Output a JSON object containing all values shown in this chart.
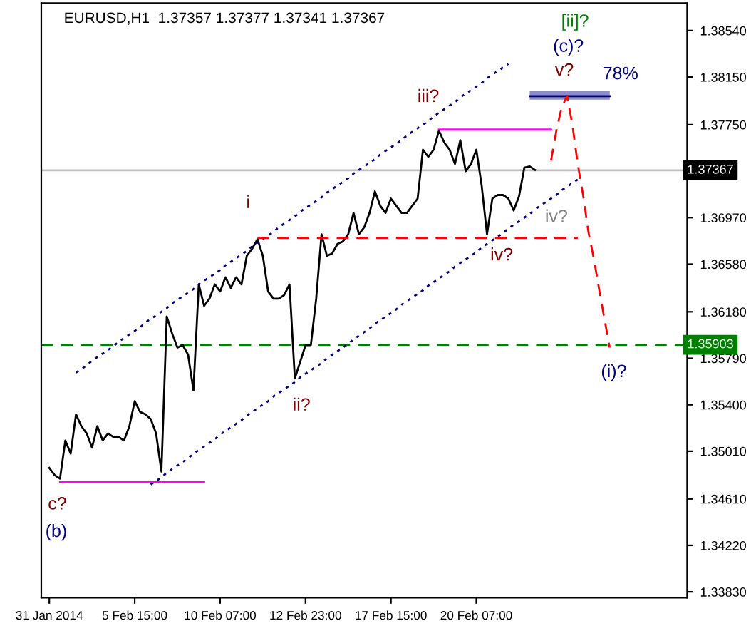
{
  "chart_data": {
    "type": "line",
    "title": "EURUSD,H1  1.37357 1.37377 1.37341 1.37367",
    "categories": [
      null,
      "31 Jan 2014",
      null,
      null,
      null,
      null,
      null,
      null,
      null,
      null,
      null,
      null,
      null,
      null,
      null,
      null,
      null,
      "5 Feb 15:00",
      null,
      null,
      null,
      null,
      null,
      null,
      null,
      null,
      null,
      null,
      null,
      null,
      null,
      null,
      null,
      "10 Feb 07:00",
      null,
      null,
      null,
      null,
      null,
      null,
      null,
      null,
      null,
      null,
      null,
      null,
      null,
      null,
      null,
      "12 Feb 23:00",
      null,
      null,
      null,
      null,
      null,
      null,
      null,
      null,
      null,
      null,
      null,
      null,
      null,
      null,
      null,
      "17 Feb 15:00",
      null,
      null,
      null,
      null,
      null,
      null,
      null,
      null,
      null,
      null,
      null,
      null,
      null,
      null,
      null,
      "20 Feb 07:00",
      null,
      null,
      null,
      null,
      null,
      null,
      null,
      null,
      null,
      null,
      null,
      null,
      null,
      null,
      null,
      null,
      null,
      null,
      null,
      null,
      null,
      null,
      null,
      null,
      null,
      null,
      null,
      null,
      null,
      null,
      null,
      null,
      null,
      null,
      null,
      null,
      null,
      null,
      null
    ],
    "ylim": [
      1.3378,
      1.3877
    ],
    "yticks": [
      {
        "value": 1.3383,
        "label": "1.33830"
      },
      {
        "value": 1.3422,
        "label": "1.34220"
      },
      {
        "value": 1.3461,
        "label": "1.34610"
      },
      {
        "value": 1.3501,
        "label": "1.35010"
      },
      {
        "value": 1.354,
        "label": "1.35400"
      },
      {
        "value": 1.3579,
        "label": "1.35790"
      },
      {
        "value": 1.3618,
        "label": "1.36180"
      },
      {
        "value": 1.3658,
        "label": "1.36580"
      },
      {
        "value": 1.3697,
        "label": "1.36970"
      },
      {
        "value": 1.3775,
        "label": "1.37750"
      },
      {
        "value": 1.3815,
        "label": "1.38150"
      },
      {
        "value": 1.3854,
        "label": "1.38540"
      }
    ],
    "grid": false,
    "legend": false,
    "marker": "none",
    "series": [
      {
        "color": "#000000",
        "line_style": "solid",
        "values": [
          null,
          1.3487,
          1.3481,
          1.3478,
          1.351,
          1.3499,
          1.3532,
          1.3522,
          1.3516,
          1.3504,
          1.3522,
          1.351,
          1.3516,
          1.3513,
          1.3513,
          1.351,
          1.3522,
          1.3543,
          1.3534,
          1.3532,
          1.3528,
          1.3516,
          1.3484,
          1.3614,
          1.36,
          1.3588,
          1.359,
          1.3582,
          1.3552,
          1.3641,
          1.3623,
          1.3629,
          1.3641,
          1.3635,
          1.3647,
          1.3638,
          1.3647,
          1.3641,
          1.3665,
          1.3671,
          1.3679,
          1.3665,
          1.3635,
          1.3629,
          1.3629,
          1.3632,
          1.3641,
          1.3562,
          1.3576,
          1.359,
          1.359,
          1.3629,
          1.3683,
          1.3665,
          1.3667,
          1.3675,
          1.3677,
          1.3683,
          1.3701,
          1.3683,
          1.3689,
          1.3701,
          1.3719,
          1.3707,
          1.3701,
          1.3713,
          1.3707,
          1.3701,
          1.3701,
          1.3707,
          1.3713,
          1.3754,
          1.3748,
          1.3754,
          1.377,
          1.376,
          1.3754,
          1.3742,
          1.3762,
          1.3736,
          1.3742,
          1.3754,
          1.3724,
          1.3683,
          1.3713,
          1.3716,
          1.3716,
          1.3713,
          1.3703,
          1.3715,
          1.3739,
          1.374,
          1.3737,
          null,
          null,
          null,
          null,
          null,
          null,
          null,
          null,
          null,
          null,
          null,
          null,
          null,
          null,
          null,
          null,
          null,
          null,
          null,
          null,
          null,
          null,
          null,
          null,
          null,
          null,
          null,
          null
        ]
      },
      {
        "color": "#000080",
        "line_style": "dotted",
        "values": [
          null,
          null,
          null,
          null,
          null,
          null,
          1.3567,
          1.357,
          1.3573,
          1.3577,
          1.358,
          1.3583,
          1.3586,
          1.3589,
          1.3593,
          1.3596,
          1.3599,
          1.3602,
          1.3605,
          1.3609,
          1.3612,
          1.3615,
          1.3618,
          1.3621,
          1.3625,
          1.3628,
          1.3631,
          1.3634,
          1.3637,
          1.3641,
          1.3644,
          1.3647,
          1.365,
          1.3653,
          1.3657,
          1.366,
          1.3663,
          1.3666,
          1.3669,
          1.3673,
          1.3676,
          1.3679,
          1.3682,
          1.3685,
          1.3689,
          1.3692,
          1.3695,
          1.3698,
          1.3702,
          1.3705,
          1.3708,
          1.3711,
          1.3714,
          1.3718,
          1.3721,
          1.3724,
          1.3727,
          1.373,
          1.3734,
          1.3737,
          1.374,
          1.3743,
          1.3746,
          1.375,
          1.3753,
          1.3756,
          1.3759,
          1.3762,
          1.3766,
          1.3769,
          1.3772,
          1.3775,
          1.3778,
          1.3782,
          1.3785,
          1.3788,
          1.3791,
          1.3794,
          1.3798,
          1.3801,
          1.3804,
          1.3807,
          1.381,
          1.3814,
          1.3817,
          1.382,
          1.3823,
          1.3826,
          null,
          null,
          null,
          null,
          null,
          null,
          null,
          null,
          null,
          null,
          null,
          null,
          null,
          null,
          null,
          null,
          null,
          null,
          null,
          null,
          null,
          null,
          null,
          null,
          null,
          null,
          null,
          null,
          null,
          null,
          null,
          null,
          null
        ]
      },
      {
        "color": "#000080",
        "line_style": "dotted",
        "values": [
          null,
          null,
          null,
          null,
          null,
          null,
          null,
          null,
          null,
          null,
          null,
          null,
          null,
          null,
          null,
          null,
          null,
          null,
          null,
          null,
          1.3473,
          1.3476,
          1.3479,
          1.3483,
          1.3486,
          1.3489,
          1.3492,
          1.3495,
          1.3499,
          1.3502,
          1.3505,
          1.3508,
          1.3511,
          1.3515,
          1.3518,
          1.3521,
          1.3524,
          1.3527,
          1.3531,
          1.3534,
          1.3537,
          1.354,
          1.3543,
          1.3547,
          1.355,
          1.3553,
          1.3556,
          1.3559,
          1.3563,
          1.3566,
          1.3569,
          1.3572,
          1.3575,
          1.3579,
          1.3582,
          1.3585,
          1.3588,
          1.3591,
          1.3595,
          1.3598,
          1.3601,
          1.3604,
          1.3608,
          1.3611,
          1.3614,
          1.3617,
          1.362,
          1.3624,
          1.3627,
          1.363,
          1.3633,
          1.3636,
          1.364,
          1.3643,
          1.3646,
          1.3649,
          1.3652,
          1.3656,
          1.3659,
          1.3662,
          1.3665,
          1.3668,
          1.3672,
          1.3675,
          1.3678,
          1.3681,
          1.3684,
          1.3688,
          1.3691,
          1.3694,
          1.3697,
          1.37,
          1.3704,
          1.3707,
          1.371,
          1.3713,
          1.3716,
          1.372,
          1.3723,
          1.3726,
          1.3729,
          null,
          null,
          null,
          null,
          null,
          null,
          null,
          null,
          null,
          null,
          null,
          null,
          null,
          null,
          null,
          null,
          null,
          null,
          null,
          null
        ]
      },
      {
        "color": "#ff0000",
        "line_style": "dashed",
        "values": [
          null,
          null,
          null,
          null,
          null,
          null,
          null,
          null,
          null,
          null,
          null,
          null,
          null,
          null,
          null,
          null,
          null,
          null,
          null,
          null,
          null,
          null,
          null,
          null,
          null,
          null,
          null,
          null,
          null,
          null,
          null,
          null,
          null,
          null,
          null,
          null,
          null,
          null,
          null,
          null,
          1.368,
          1.368,
          1.368,
          1.368,
          1.368,
          1.368,
          1.368,
          1.368,
          1.368,
          1.368,
          1.368,
          1.368,
          1.368,
          1.368,
          1.368,
          1.368,
          1.368,
          1.368,
          1.368,
          1.368,
          1.368,
          1.368,
          1.368,
          1.368,
          1.368,
          1.368,
          1.368,
          1.368,
          1.368,
          1.368,
          1.368,
          1.368,
          1.368,
          1.368,
          1.368,
          1.368,
          1.368,
          1.368,
          1.368,
          1.368,
          1.368,
          1.368,
          1.368,
          1.368,
          1.368,
          1.368,
          1.368,
          1.368,
          1.368,
          1.368,
          1.368,
          1.368,
          1.368,
          1.368,
          1.368,
          1.368,
          1.368,
          1.368,
          1.368,
          1.368,
          1.368,
          null,
          null,
          null,
          null,
          null,
          null,
          null,
          null,
          null,
          null,
          null,
          null,
          null,
          null,
          null,
          null,
          null,
          null,
          null,
          null
        ]
      },
      {
        "color": "#ff00ff",
        "line_style": "solid",
        "values": [
          null,
          null,
          null,
          1.3475,
          1.3475,
          1.3475,
          1.3475,
          1.3475,
          1.3475,
          1.3475,
          1.3475,
          1.3475,
          1.3475,
          1.3475,
          1.3475,
          1.3475,
          1.3475,
          1.3475,
          1.3475,
          1.3475,
          1.3475,
          1.3475,
          1.3475,
          1.3475,
          1.3475,
          1.3475,
          1.3475,
          1.3475,
          1.3475,
          1.3475,
          1.3475,
          null,
          null,
          null,
          null,
          null,
          null,
          null,
          null,
          null,
          null,
          null,
          null,
          null,
          null,
          null,
          null,
          null,
          null,
          null,
          null,
          null,
          null,
          null,
          null,
          null,
          null,
          null,
          null,
          null,
          null,
          null,
          null,
          null,
          null,
          null,
          null,
          null,
          null,
          null,
          null,
          null,
          null,
          null,
          null,
          null,
          null,
          null,
          null,
          null,
          null,
          null,
          null,
          null,
          null,
          null,
          null,
          null,
          null,
          null,
          null,
          null,
          null,
          null,
          null,
          null,
          null,
          null,
          null,
          null,
          null,
          null,
          null,
          null,
          null,
          null,
          null,
          null,
          null,
          null,
          null,
          null,
          null,
          null,
          null,
          null,
          null,
          null,
          null,
          null,
          null
        ]
      },
      {
        "color": "#ff00ff",
        "line_style": "solid",
        "values": [
          null,
          null,
          null,
          null,
          null,
          null,
          null,
          null,
          null,
          null,
          null,
          null,
          null,
          null,
          null,
          null,
          null,
          null,
          null,
          null,
          null,
          null,
          null,
          null,
          null,
          null,
          null,
          null,
          null,
          null,
          null,
          null,
          null,
          null,
          null,
          null,
          null,
          null,
          null,
          null,
          null,
          null,
          null,
          null,
          null,
          null,
          null,
          null,
          null,
          null,
          null,
          null,
          null,
          null,
          null,
          null,
          null,
          null,
          null,
          null,
          null,
          null,
          null,
          null,
          null,
          null,
          null,
          null,
          null,
          null,
          null,
          null,
          null,
          null,
          1.3771,
          1.3771,
          1.3771,
          1.3771,
          1.3771,
          1.3771,
          1.3771,
          1.3771,
          1.3771,
          1.3771,
          1.3771,
          1.3771,
          1.3771,
          1.3771,
          1.3771,
          1.3771,
          1.3771,
          1.3771,
          1.3771,
          1.3771,
          1.3771,
          1.3771,
          null,
          null,
          null,
          null,
          null,
          null,
          null,
          null,
          null,
          null,
          null,
          null,
          null,
          null,
          null,
          null,
          null,
          null,
          null,
          null,
          null,
          null,
          null,
          null,
          null
        ]
      },
      {
        "color": "#000080",
        "line_style": "solid",
        "values": [
          null,
          null,
          null,
          null,
          null,
          null,
          null,
          null,
          null,
          null,
          null,
          null,
          null,
          null,
          null,
          null,
          null,
          null,
          null,
          null,
          null,
          null,
          null,
          null,
          null,
          null,
          null,
          null,
          null,
          null,
          null,
          null,
          null,
          null,
          null,
          null,
          null,
          null,
          null,
          null,
          null,
          null,
          null,
          null,
          null,
          null,
          null,
          null,
          null,
          null,
          null,
          null,
          null,
          null,
          null,
          null,
          null,
          null,
          null,
          null,
          null,
          null,
          null,
          null,
          null,
          null,
          null,
          null,
          null,
          null,
          null,
          null,
          null,
          null,
          null,
          null,
          null,
          null,
          null,
          null,
          null,
          null,
          null,
          null,
          null,
          null,
          null,
          null,
          null,
          null,
          null,
          1.3799,
          1.3799,
          1.3799,
          1.3799,
          1.3799,
          1.3799,
          1.3799,
          1.3799,
          1.3799,
          1.3799,
          1.3799,
          1.3799,
          1.3799,
          1.3799,
          1.3799,
          1.3799,
          null,
          null,
          null,
          null,
          null,
          null,
          null,
          null,
          null,
          null,
          null,
          null,
          null,
          null
        ],
        "lower": [
          null,
          null,
          null,
          null,
          null,
          null,
          null,
          null,
          null,
          null,
          null,
          null,
          null,
          null,
          null,
          null,
          null,
          null,
          null,
          null,
          null,
          null,
          null,
          null,
          null,
          null,
          null,
          null,
          null,
          null,
          null,
          null,
          null,
          null,
          null,
          null,
          null,
          null,
          null,
          null,
          null,
          null,
          null,
          null,
          null,
          null,
          null,
          null,
          null,
          null,
          null,
          null,
          null,
          null,
          null,
          null,
          null,
          null,
          null,
          null,
          null,
          null,
          null,
          null,
          null,
          null,
          null,
          null,
          null,
          null,
          null,
          null,
          null,
          null,
          null,
          null,
          null,
          null,
          null,
          null,
          null,
          null,
          null,
          null,
          null,
          null,
          null,
          null,
          null,
          null,
          null,
          1.3796,
          1.3796,
          1.3796,
          1.3796,
          1.3796,
          1.3796,
          1.3796,
          1.3796,
          1.3796,
          1.3796,
          1.3796,
          1.3796,
          1.3796,
          1.3796,
          1.3796,
          1.3796,
          null,
          null,
          null,
          null,
          null,
          null,
          null,
          null,
          null,
          null,
          null,
          null,
          null,
          null
        ],
        "upper": [
          null,
          null,
          null,
          null,
          null,
          null,
          null,
          null,
          null,
          null,
          null,
          null,
          null,
          null,
          null,
          null,
          null,
          null,
          null,
          null,
          null,
          null,
          null,
          null,
          null,
          null,
          null,
          null,
          null,
          null,
          null,
          null,
          null,
          null,
          null,
          null,
          null,
          null,
          null,
          null,
          null,
          null,
          null,
          null,
          null,
          null,
          null,
          null,
          null,
          null,
          null,
          null,
          null,
          null,
          null,
          null,
          null,
          null,
          null,
          null,
          null,
          null,
          null,
          null,
          null,
          null,
          null,
          null,
          null,
          null,
          null,
          null,
          null,
          null,
          null,
          null,
          null,
          null,
          null,
          null,
          null,
          null,
          null,
          null,
          null,
          null,
          null,
          null,
          null,
          null,
          null,
          1.3803,
          1.3803,
          1.3803,
          1.3803,
          1.3803,
          1.3803,
          1.3803,
          1.3803,
          1.3803,
          1.3803,
          1.3803,
          1.3803,
          1.3803,
          1.3803,
          1.3803,
          1.3803,
          null,
          null,
          null,
          null,
          null,
          null,
          null,
          null,
          null,
          null,
          null,
          null,
          null,
          null
        ]
      },
      {
        "color": "#ff0000",
        "line_style": "dashed",
        "values": [
          null,
          null,
          null,
          null,
          null,
          null,
          null,
          null,
          null,
          null,
          null,
          null,
          null,
          null,
          null,
          null,
          null,
          null,
          null,
          null,
          null,
          null,
          null,
          null,
          null,
          null,
          null,
          null,
          null,
          null,
          null,
          null,
          null,
          null,
          null,
          null,
          null,
          null,
          null,
          null,
          null,
          null,
          null,
          null,
          null,
          null,
          null,
          null,
          null,
          null,
          null,
          null,
          null,
          null,
          null,
          null,
          null,
          null,
          null,
          null,
          null,
          null,
          null,
          null,
          null,
          null,
          null,
          null,
          null,
          null,
          null,
          null,
          null,
          null,
          null,
          null,
          null,
          null,
          null,
          null,
          null,
          null,
          null,
          null,
          null,
          null,
          null,
          null,
          null,
          null,
          null,
          null,
          null,
          null,
          null,
          1.3745,
          1.377,
          1.379,
          1.3799,
          1.3775,
          1.3742,
          1.3716,
          1.3685,
          1.3663,
          1.3637,
          1.3612,
          1.3588,
          null,
          null,
          null,
          null,
          null,
          null,
          null,
          null,
          null,
          null,
          null,
          null,
          null,
          null
        ]
      }
    ],
    "ref_lines": [
      {
        "axis": "y",
        "value": 1.37367,
        "label": "1.37367",
        "color": "#c0c0c0",
        "line_style": "solid"
      },
      {
        "axis": "y",
        "value": 1.35903,
        "label": "1.35903",
        "color": "#008000",
        "line_style": "dashed"
      }
    ],
    "annotations": [
      "[ii]?",
      "(c)?",
      "v?",
      "78%",
      "iii?",
      "i",
      "ii?",
      "iv?",
      "iv?",
      "c?",
      "(b)",
      "(i)?"
    ]
  }
}
